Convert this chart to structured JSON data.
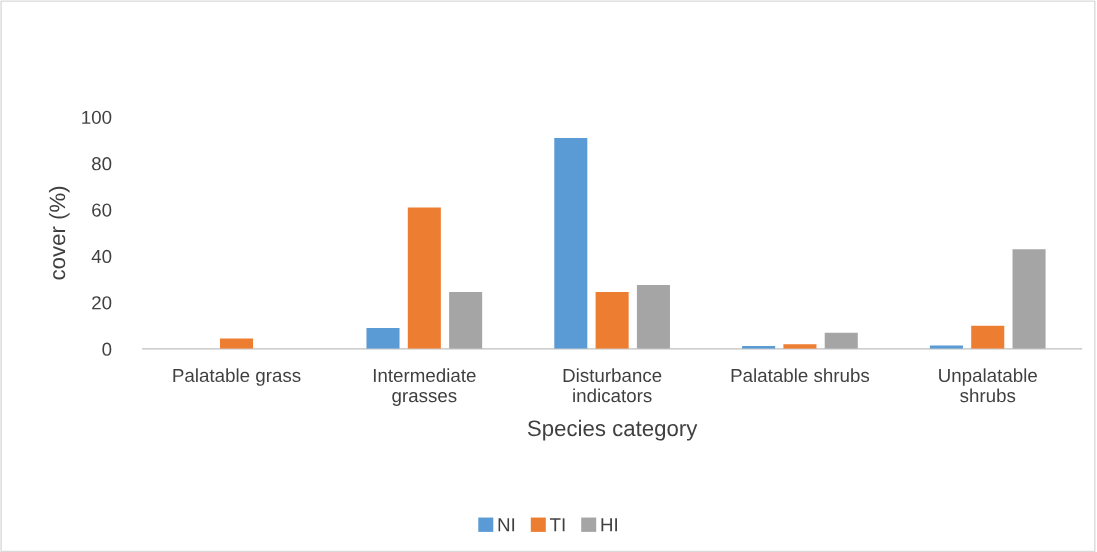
{
  "chart_data": {
    "type": "bar",
    "xlabel": "Species category",
    "ylabel": "cover (%)",
    "categories": [
      "Palatable grass",
      "Intermediate grasses",
      "Disturbance indicators",
      "Palatable shrubs",
      "Unpalatable shrubs"
    ],
    "series": [
      {
        "name": "NI",
        "color": "#5b9bd5",
        "values": [
          0,
          9,
          91,
          1.2,
          1.5
        ]
      },
      {
        "name": "TI",
        "color": "#ed7d31",
        "values": [
          4.5,
          61,
          24.5,
          2,
          10
        ]
      },
      {
        "name": "HI",
        "color": "#a5a5a5",
        "values": [
          0,
          24.5,
          27.5,
          7,
          43
        ]
      }
    ],
    "ylim": [
      0,
      100
    ],
    "yticks": [
      0,
      20,
      40,
      60,
      80,
      100
    ],
    "grid": false,
    "legend": "bottom"
  }
}
